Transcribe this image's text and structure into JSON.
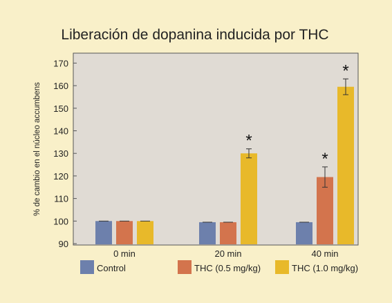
{
  "colors": {
    "page_background": "#f9f0c9",
    "plot_background": "#e0dbd4",
    "control": "#6d80ac",
    "thc_low": "#d3744d",
    "thc_high": "#e8b92a"
  },
  "chart_data": {
    "type": "bar",
    "title": "Liberación de dopanina inducida por THC",
    "xlabel": "",
    "ylabel": "% de cambio en el núcleo accumbens",
    "categories": [
      "0 min",
      "20 min",
      "40 min"
    ],
    "ylim": [
      90,
      175
    ],
    "yticks": [
      90,
      100,
      110,
      120,
      130,
      140,
      150,
      160,
      170
    ],
    "grid": false,
    "legend_position": "bottom",
    "series": [
      {
        "name": "Control",
        "color": "#6d80ac",
        "values": [
          100,
          99.5,
          99.5
        ],
        "errors": [
          0,
          0,
          0
        ],
        "significant": [
          false,
          false,
          false
        ]
      },
      {
        "name": "THC (0.5 mg/kg)",
        "color": "#d3744d",
        "values": [
          100,
          99.5,
          119.5
        ],
        "errors": [
          0,
          0,
          4.5
        ],
        "significant": [
          false,
          false,
          true
        ]
      },
      {
        "name": "THC (1.0 mg/kg)",
        "color": "#e8b92a",
        "values": [
          100,
          130,
          159.5
        ],
        "errors": [
          0,
          2,
          3.5
        ],
        "significant": [
          false,
          true,
          true
        ]
      }
    ],
    "significance_marker": "*"
  }
}
